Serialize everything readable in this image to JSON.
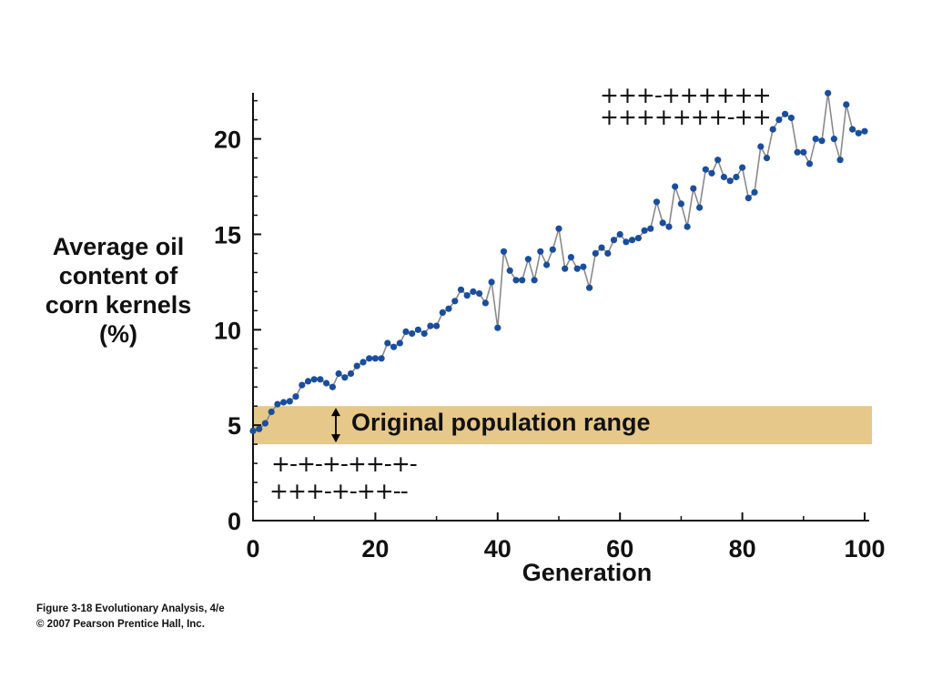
{
  "chart_data": {
    "type": "line",
    "title": "",
    "ylabel_lines": [
      "Average oil",
      "content of",
      "corn kernels",
      "(%)"
    ],
    "xlabel": "Generation",
    "xlim": [
      0,
      100
    ],
    "ylim": [
      0,
      22.5
    ],
    "xticks": [
      0,
      20,
      40,
      60,
      80,
      100
    ],
    "yticks": [
      0,
      5,
      10,
      15,
      20
    ],
    "grid": false,
    "marker_color": "#1a4e9c",
    "line_color": "#8a8a8a",
    "x": [
      0,
      1,
      2,
      3,
      4,
      5,
      6,
      7,
      8,
      9,
      10,
      11,
      12,
      13,
      14,
      15,
      16,
      17,
      18,
      19,
      20,
      21,
      22,
      23,
      24,
      25,
      26,
      27,
      28,
      29,
      30,
      31,
      32,
      33,
      34,
      35,
      36,
      37,
      38,
      39,
      40,
      41,
      42,
      43,
      44,
      45,
      46,
      47,
      48,
      49,
      50,
      51,
      52,
      53,
      54,
      55,
      56,
      57,
      58,
      59,
      60,
      61,
      62,
      63,
      64,
      65,
      66,
      67,
      68,
      69,
      70,
      71,
      72,
      73,
      74,
      75,
      76,
      77,
      78,
      79,
      80,
      81,
      82,
      83,
      84,
      85,
      86,
      87,
      88,
      89,
      90,
      91,
      92,
      93,
      94,
      95,
      96,
      97,
      98,
      99,
      100
    ],
    "values": [
      4.7,
      4.8,
      5.1,
      5.7,
      6.1,
      6.2,
      6.25,
      6.5,
      7.1,
      7.3,
      7.4,
      7.4,
      7.2,
      7.0,
      7.7,
      7.5,
      7.7,
      8.1,
      8.3,
      8.5,
      8.5,
      8.5,
      9.3,
      9.1,
      9.3,
      9.9,
      9.8,
      10.0,
      9.8,
      10.2,
      10.2,
      10.9,
      11.1,
      11.5,
      12.1,
      11.8,
      12.0,
      11.9,
      11.4,
      12.5,
      10.1,
      14.1,
      13.1,
      12.6,
      12.6,
      13.7,
      12.6,
      14.1,
      13.4,
      14.2,
      15.3,
      13.2,
      13.8,
      13.2,
      13.3,
      12.2,
      14.0,
      14.3,
      14.0,
      14.7,
      15.0,
      14.6,
      14.7,
      14.8,
      15.2,
      15.3,
      16.7,
      15.6,
      15.4,
      17.5,
      16.6,
      15.4,
      17.4,
      16.4,
      18.4,
      18.2,
      18.9,
      18.0,
      17.8,
      18.0,
      18.5,
      16.9,
      17.2,
      19.6,
      19.0,
      20.5,
      21.0,
      21.3,
      21.1,
      19.3,
      19.3,
      18.7,
      20.0,
      19.9,
      22.4,
      20.0,
      18.9,
      21.8,
      20.5,
      20.3,
      20.4
    ],
    "band": {
      "label": "Original population range",
      "y_range": [
        4.0,
        6.0
      ],
      "color": "#e5c88a"
    },
    "annotations": {
      "top_line1": "+++-++++++",
      "top_line2": "+++++++-++",
      "bottom_line1": "+-+-+-++-+-",
      "bottom_line2": "+++-+-++--"
    }
  },
  "caption": {
    "line1": "Figure 3-18  Evolutionary Analysis, 4/e",
    "line2": "© 2007 Pearson Prentice Hall, Inc."
  }
}
